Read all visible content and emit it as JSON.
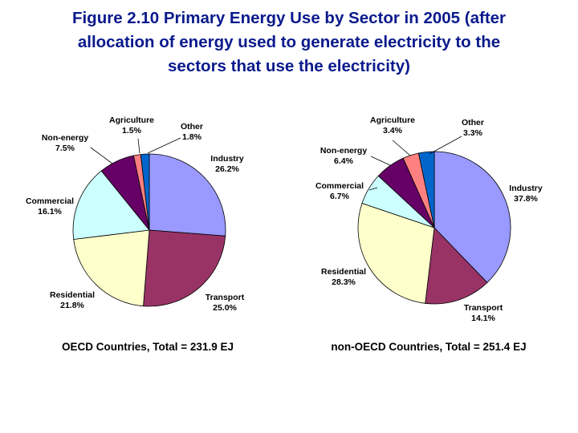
{
  "title_lines": [
    "Figure 2.10 Primary Energy Use by Sector in 2005 (after",
    "allocation of energy used to generate electricity to the",
    "sectors that use the electricity)"
  ],
  "colors": {
    "Industry": "#9999ff",
    "Transport": "#993366",
    "Residential": "#ffffcc",
    "Commercial": "#ccffff",
    "Non-energy": "#660066",
    "Agriculture": "#ff8080",
    "Other": "#0066cc"
  },
  "chart_data": [
    {
      "type": "pie",
      "caption": "OECD Countries, Total = 231.9 EJ",
      "slices": [
        {
          "name": "Industry",
          "label": "Industry",
          "value_label": "26.2%",
          "value": 26.2
        },
        {
          "name": "Transport",
          "label": "Transport",
          "value_label": "25.0%",
          "value": 25.0
        },
        {
          "name": "Residential",
          "label": "Residential",
          "value_label": "21.8%",
          "value": 21.8
        },
        {
          "name": "Commercial",
          "label": "Commercial",
          "value_label": "16.1%",
          "value": 16.1
        },
        {
          "name": "Non-energy",
          "label": "Non-energy",
          "value_label": "7.5%",
          "value": 7.5
        },
        {
          "name": "Agriculture",
          "label": "Agriculture",
          "value_label": "1.5%",
          "value": 1.5
        },
        {
          "name": "Other",
          "label": "Other",
          "value_label": "1.8%",
          "value": 1.8
        }
      ]
    },
    {
      "type": "pie",
      "caption": "non-OECD Countries, Total = 251.4 EJ",
      "slices": [
        {
          "name": "Industry",
          "label": "Industry",
          "value_label": "37.8%",
          "value": 37.8
        },
        {
          "name": "Transport",
          "label": "Transport",
          "value_label": "14.1%",
          "value": 14.1
        },
        {
          "name": "Residential",
          "label": "Residential",
          "value_label": "28.3%",
          "value": 28.3
        },
        {
          "name": "Commercial",
          "label": "Commercial",
          "value_label": "6.7%",
          "value": 6.7
        },
        {
          "name": "Non-energy",
          "label": "Non-energy",
          "value_label": "6.4%",
          "value": 6.4
        },
        {
          "name": "Agriculture",
          "label": "Agriculture",
          "value_label": "3.4%",
          "value": 3.4
        },
        {
          "name": "Other",
          "label": "Other",
          "value_label": "3.3%",
          "value": 3.3
        }
      ]
    }
  ]
}
